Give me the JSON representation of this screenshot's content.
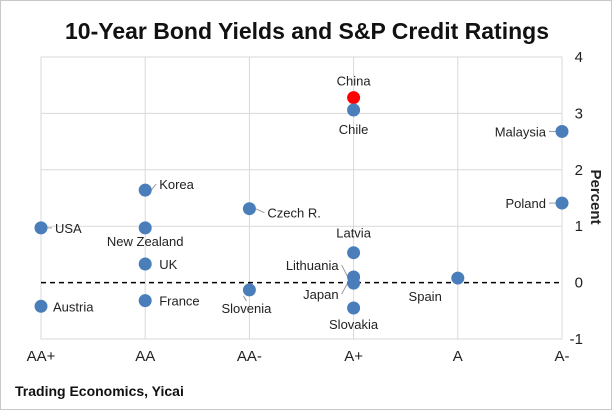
{
  "chart_data": {
    "type": "scatter",
    "title": "10-Year Bond Yields and S&P Credit Ratings",
    "ylabel": "Percent",
    "xlabel": "",
    "source": "Trading Economics, Yicai",
    "categories": [
      "AA+",
      "AA",
      "AA-",
      "A+",
      "A",
      "A-"
    ],
    "ylim": [
      -1,
      4
    ],
    "yticks": [
      "-1",
      "0",
      "1",
      "2",
      "3",
      "4"
    ],
    "grid": true,
    "reference_line": {
      "y": 0,
      "style": "dashed"
    },
    "colors": {
      "point": "#4a7ebb",
      "highlight": "#ff0000",
      "grid": "#d9d9d9"
    },
    "points": [
      {
        "label": "USA",
        "category": "AA+",
        "y": 0.97
      },
      {
        "label": "Austria",
        "category": "AA+",
        "y": -0.42
      },
      {
        "label": "Korea",
        "category": "AA",
        "y": 1.64
      },
      {
        "label": "New Zealand",
        "category": "AA",
        "y": 0.97
      },
      {
        "label": "UK",
        "category": "AA",
        "y": 0.33
      },
      {
        "label": "France",
        "category": "AA",
        "y": -0.32
      },
      {
        "label": "Czech R.",
        "category": "AA-",
        "y": 1.31
      },
      {
        "label": "Slovenia",
        "category": "AA-",
        "y": -0.13
      },
      {
        "label": "China",
        "category": "A+",
        "y": 3.28,
        "highlight": true
      },
      {
        "label": "Chile",
        "category": "A+",
        "y": 3.06
      },
      {
        "label": "Latvia",
        "category": "A+",
        "y": 0.53
      },
      {
        "label": "Lithuania",
        "category": "A+",
        "y": 0.1
      },
      {
        "label": "Japan",
        "category": "A+",
        "y": -0.01
      },
      {
        "label": "Slovakia",
        "category": "A+",
        "y": -0.45
      },
      {
        "label": "Spain",
        "category": "A",
        "y": 0.08
      },
      {
        "label": "Malaysia",
        "category": "A-",
        "y": 2.68
      },
      {
        "label": "Poland",
        "category": "A-",
        "y": 1.41
      }
    ]
  }
}
